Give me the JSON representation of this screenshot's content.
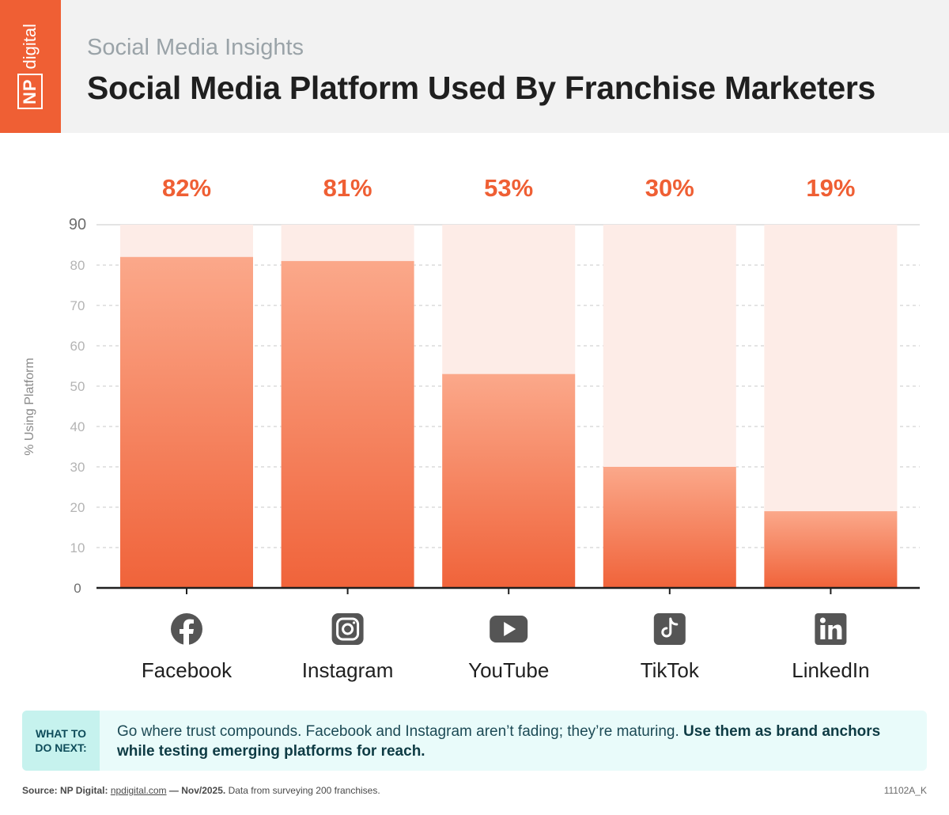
{
  "header": {
    "logo": {
      "np": "NP",
      "digital": "digital"
    },
    "kicker": "Social Media Insights",
    "title": "Social Media Platform Used By Franchise Marketers"
  },
  "colors": {
    "accent": "#ef5f34",
    "bar_top": "#fba88a",
    "bar_bottom": "#f0633a",
    "track": "#fdece7",
    "label": "#ef5f34",
    "grid": "#c9c9c9"
  },
  "chart_data": {
    "type": "bar",
    "categories": [
      "Facebook",
      "Instagram",
      "YouTube",
      "TikTok",
      "LinkedIn"
    ],
    "icons": [
      "facebook-icon",
      "instagram-icon",
      "youtube-icon",
      "tiktok-icon",
      "linkedin-icon"
    ],
    "values": [
      82,
      81,
      53,
      30,
      19
    ],
    "value_labels": [
      "82%",
      "81%",
      "53%",
      "30%",
      "19%"
    ],
    "ylabel": "% Using Platform",
    "ylim": [
      0,
      90
    ],
    "yticks": [
      0,
      10,
      20,
      30,
      40,
      50,
      60,
      70,
      80,
      90
    ],
    "grid": true
  },
  "next_steps": {
    "label": "WHAT TO DO NEXT:",
    "text": "Go where trust compounds. Facebook and Instagram aren’t fading; they’re maturing. ",
    "bold": "Use them as brand anchors while testing emerging platforms for reach."
  },
  "footer": {
    "source_label": "Source: NP Digital:",
    "source_link": "npdigital.com",
    "source_date": "— Nov/2025.",
    "source_note": "Data from surveying 200 franchises.",
    "code": "11102A_K"
  }
}
